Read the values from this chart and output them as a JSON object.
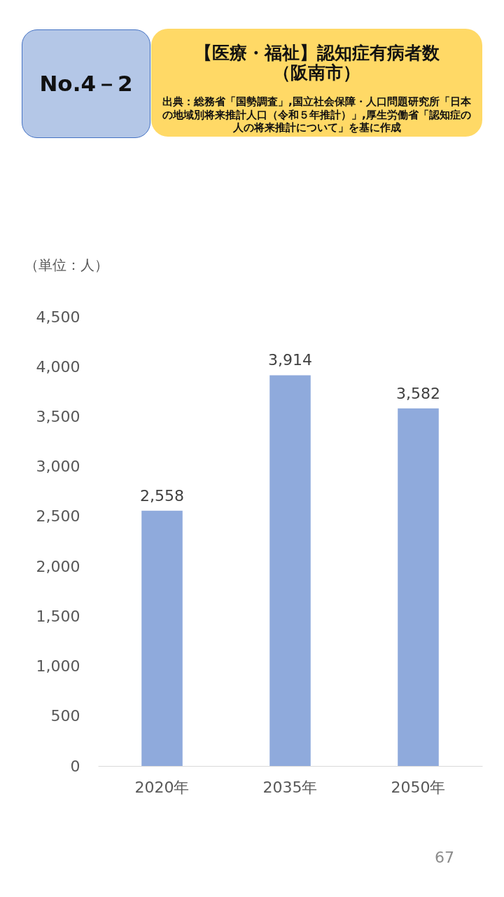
{
  "chart_data": {
    "type": "bar",
    "subtitle": "No.4－2",
    "title": "【医療・福祉】認知症有病者数（阪南市）",
    "annotations": [
      "出典：総務省「国勢調査」,国立社会保障・人口問題研究所「日本の地域別将来推計人口（令和５年推計）」,厚生労働省「認知症の人の将来推計について」を基に作成",
      "67"
    ],
    "ylabel": "（単位：人）",
    "categories": [
      "2020年",
      "2035年",
      "2050年"
    ],
    "values": [
      2558,
      3914,
      3582
    ],
    "value_labels": [
      "2,558",
      "3,914",
      "3,582"
    ],
    "color": "#8faadc",
    "ylim": [
      0,
      4500
    ],
    "yticks": [
      0,
      500,
      {
        "value": 1000,
        "label": "1,000"
      },
      {
        "value": 1500,
        "label": "1,500"
      },
      {
        "value": 2000,
        "label": "2,000"
      },
      {
        "value": 2500,
        "label": "2,500"
      },
      {
        "value": 3000,
        "label": "3,000"
      },
      {
        "value": 3500,
        "label": "3,500"
      },
      {
        "value": 4000,
        "label": "4,000"
      },
      {
        "value": 4500,
        "label": "4,500"
      }
    ]
  }
}
